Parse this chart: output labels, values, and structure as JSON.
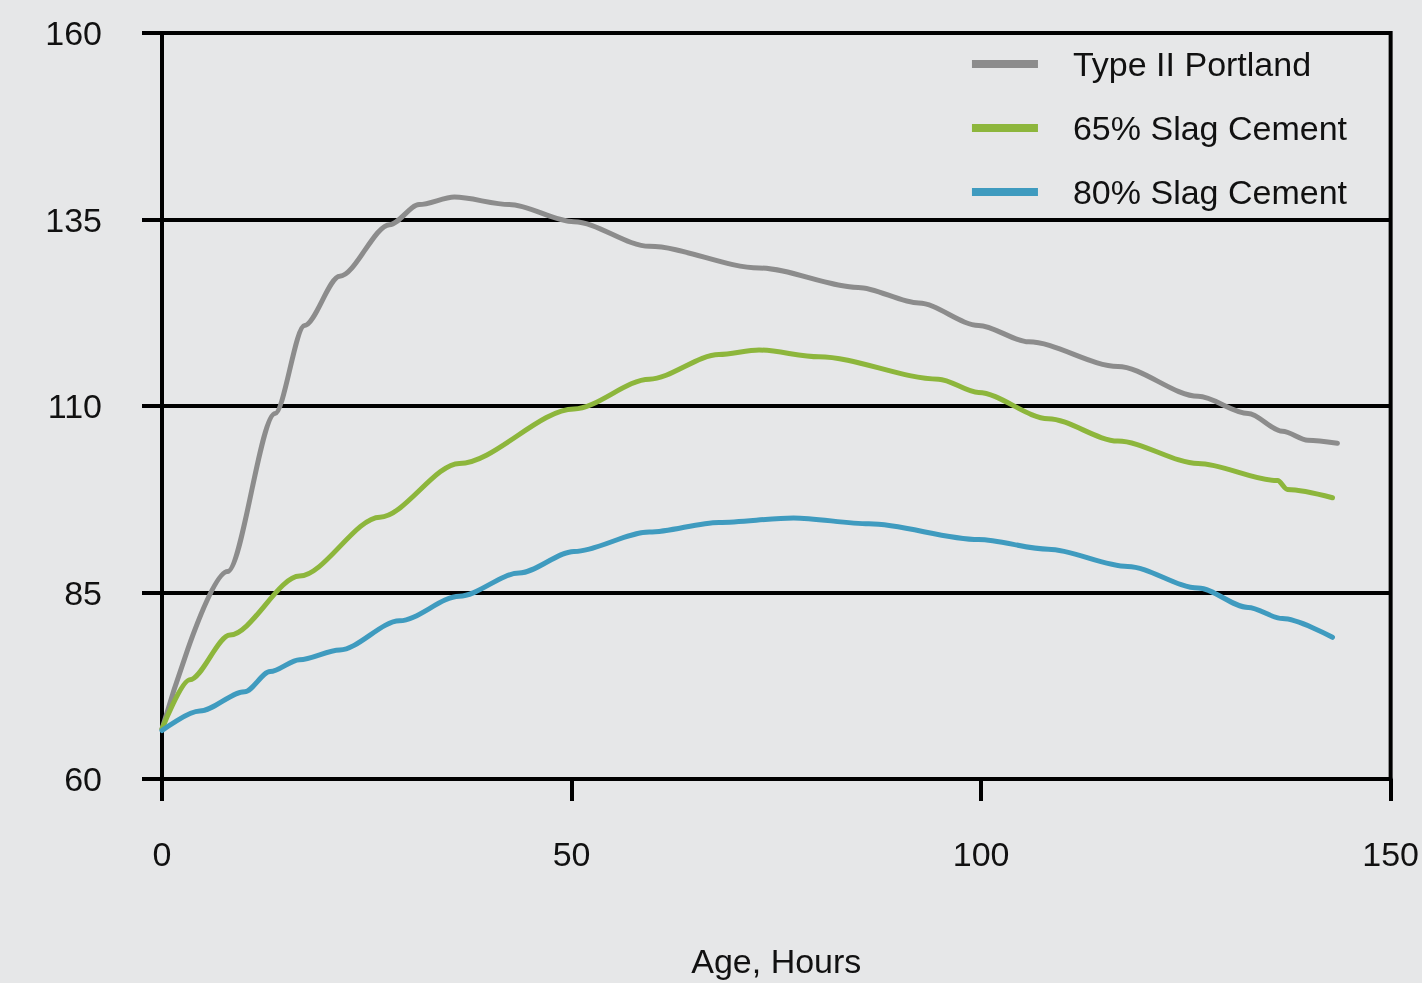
{
  "chart_data": {
    "type": "line",
    "xlabel": "Age, Hours",
    "xlim": [
      0,
      150
    ],
    "xticks": [
      0,
      50,
      100,
      150
    ],
    "ylim": [
      60,
      160
    ],
    "yticks": [
      60,
      85,
      110,
      135,
      160
    ],
    "grid": "y",
    "legend": "top right",
    "marker": "none",
    "line_style": "solid",
    "series": [
      {
        "name": "Type II Portland",
        "color": "#8c8c8c",
        "x": [
          0,
          8,
          13.8,
          17.4,
          21.7,
          27.8,
          31.4,
          35.7,
          42.4,
          50.3,
          59.5,
          72.9,
          85,
          92.4,
          99.7,
          105.8,
          116.7,
          126.5,
          132.6,
          136.8,
          139.9,
          143.5
        ],
        "values": [
          66.7,
          87.8,
          109,
          120.8,
          127.4,
          134.3,
          137,
          138,
          137,
          134.7,
          131.4,
          128.5,
          125.9,
          123.8,
          120.8,
          118.6,
          115.3,
          111.3,
          109,
          106.6,
          105.4,
          105
        ]
      },
      {
        "name": "65% Slag Cement",
        "color": "#8db63c",
        "x": [
          0,
          3.4,
          8.3,
          16.8,
          26.6,
          36.3,
          50.3,
          59.5,
          68,
          72.9,
          80.2,
          94.8,
          99.7,
          108.2,
          116.7,
          126.5,
          136.2,
          137.4,
          142.9
        ],
        "values": [
          66.7,
          73.3,
          79.3,
          87.2,
          95.1,
          102.3,
          109.6,
          113.6,
          116.9,
          117.5,
          116.6,
          113.6,
          111.8,
          108.3,
          105.3,
          102.3,
          100,
          98.8,
          97.7
        ]
      },
      {
        "name": "80% Slag Cement",
        "color": "#3f9bbf",
        "x": [
          0,
          4.6,
          10.1,
          13.2,
          16.8,
          21.7,
          29,
          36.3,
          43.6,
          50.3,
          59.5,
          68,
          77.1,
          86.3,
          99.7,
          108.2,
          117.9,
          126.5,
          132.6,
          136.8,
          142.9
        ],
        "values": [
          66.5,
          69.1,
          71.7,
          74.4,
          76,
          77.3,
          81.2,
          84.5,
          87.6,
          90.5,
          93.1,
          94.4,
          95,
          94.2,
          92.1,
          90.8,
          88.5,
          85.6,
          83,
          81.5,
          79
        ]
      }
    ]
  }
}
